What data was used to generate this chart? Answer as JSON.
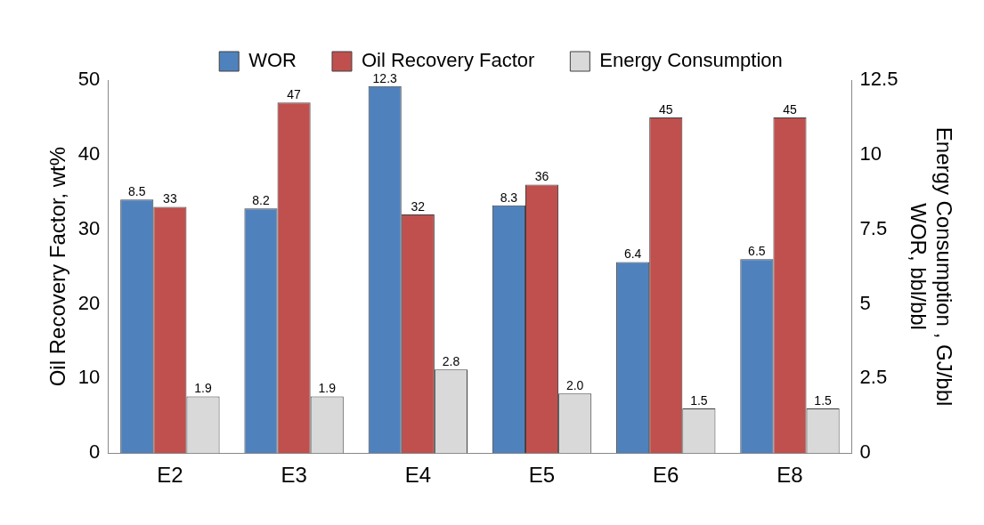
{
  "chart_data": {
    "type": "bar",
    "categories": [
      "E2",
      "E3",
      "E4",
      "E5",
      "E6",
      "E8"
    ],
    "ylabel": "Oil Recovery Factor, wt%",
    "y2label": "Energy Consumption , GJ/bbl\nWOR, bbl/bbl",
    "series": [
      {
        "name": "WOR",
        "color": "#4f81bd",
        "axis": "y2",
        "values": [
          8.5,
          8.2,
          12.3,
          8.3,
          6.4,
          6.5
        ],
        "value_labels": [
          "8.5",
          "8.2",
          "12.3",
          "8.3",
          "6.4",
          "6.5"
        ]
      },
      {
        "name": "Oil Recovery Factor",
        "color": "#c0504d",
        "values": [
          33,
          47,
          32,
          36,
          45,
          45
        ],
        "value_labels": [
          "33",
          "47",
          "32",
          "36",
          "45",
          "45"
        ]
      },
      {
        "name": "Energy Consumption",
        "color": "#d9d9d9",
        "axis": "y2",
        "values": [
          1.9,
          1.9,
          2.8,
          2.0,
          1.5,
          1.5
        ],
        "value_labels": [
          "1.9",
          "1.9",
          "2.8",
          "2.0",
          "1.5",
          "1.5"
        ]
      }
    ],
    "ylim": [
      0,
      50
    ],
    "yticks": [
      0,
      10,
      20,
      30,
      40,
      50
    ],
    "y2lim": [
      0,
      12.5
    ],
    "y2ticks": [
      0,
      2.5,
      5,
      7.5,
      10,
      12.5
    ],
    "grid": false,
    "legend": "top"
  }
}
